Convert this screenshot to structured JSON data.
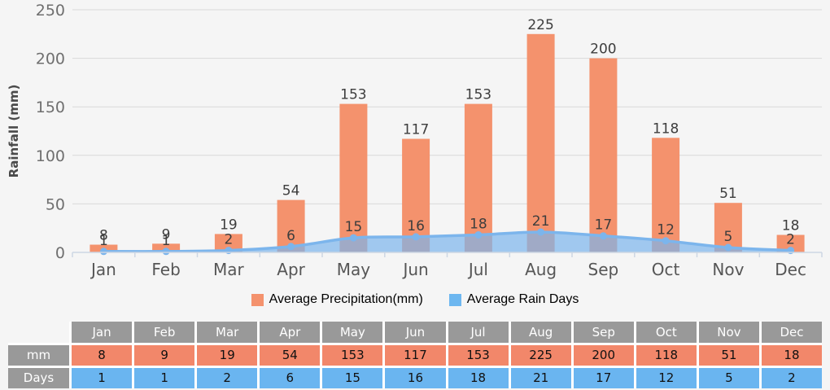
{
  "chart_data": {
    "type": "bar+area combo",
    "categories": [
      "Jan",
      "Feb",
      "Mar",
      "Apr",
      "May",
      "Jun",
      "Jul",
      "Aug",
      "Sep",
      "Oct",
      "Nov",
      "Dec"
    ],
    "series": [
      {
        "name": "Average Precipitation(mm)",
        "type": "bar",
        "color": "#f4926d",
        "values": [
          8,
          9,
          19,
          54,
          153,
          117,
          153,
          225,
          200,
          118,
          51,
          18
        ]
      },
      {
        "name": "Average Rain Days",
        "type": "area",
        "color": "#7cb5ec",
        "values": [
          1,
          1,
          2,
          6,
          15,
          16,
          18,
          21,
          17,
          12,
          5,
          2
        ]
      }
    ],
    "title": "",
    "xlabel": "",
    "ylabel": "Rainfall (mm)",
    "ylim": [
      0,
      250
    ],
    "yticks": [
      0,
      50,
      100,
      150,
      200,
      250
    ],
    "grid": true,
    "data_labels": true,
    "legend_position": "bottom-center"
  },
  "legend": {
    "items": [
      {
        "label": "Average Precipitation(mm)",
        "color": "#f4926d"
      },
      {
        "label": "Average Rain Days",
        "color": "#6db7f0"
      }
    ]
  },
  "table": {
    "corner_label": "",
    "columns": [
      "Jan",
      "Feb",
      "Mar",
      "Apr",
      "May",
      "Jun",
      "Jul",
      "Aug",
      "Sep",
      "Oct",
      "Nov",
      "Dec"
    ],
    "rows": [
      {
        "label": "mm",
        "color": "#f2876a",
        "values": [
          "8",
          "9",
          "19",
          "54",
          "153",
          "117",
          "153",
          "225",
          "200",
          "118",
          "51",
          "18"
        ]
      },
      {
        "label": "Days",
        "color": "#6ab5f0",
        "values": [
          "1",
          "1",
          "2",
          "6",
          "15",
          "16",
          "18",
          "21",
          "17",
          "12",
          "5",
          "2"
        ]
      }
    ]
  },
  "colors": {
    "background": "#f5f5f5",
    "gridline": "#d9d9d9",
    "axis_line": "#cdd7e4",
    "tick_label": "#6f6f6f",
    "month_label": "#565656",
    "data_label": "#3d3d3d",
    "axis_title": "#4a4a4a",
    "bar": "#f4926d",
    "line": "#7cb5ec",
    "area_fill": "rgba(124,181,236,0.7)",
    "table_header_bg": "#999999"
  }
}
